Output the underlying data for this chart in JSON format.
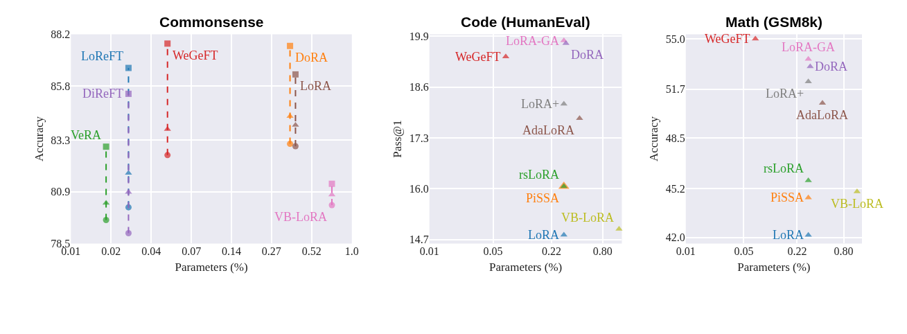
{
  "chart_data": [
    {
      "type": "line",
      "title": "Commonsense",
      "xlabel": "Parameters (%)",
      "ylabel": "Accuracy",
      "log": "x",
      "grid": true,
      "line_style": "dashed",
      "xlim": [
        0.01,
        1.0
      ],
      "xticks": [
        0.01,
        {
          "value": 0.0193,
          "label": "0.02"
        },
        {
          "value": 0.0373,
          "label": "0.04"
        },
        {
          "value": 0.072,
          "label": "0.07"
        },
        {
          "value": 0.139,
          "label": "0.14"
        },
        {
          "value": 0.268,
          "label": "0.27"
        },
        {
          "value": 0.518,
          "label": "0.52"
        },
        {
          "value": 1.0,
          "label": "1.0"
        }
      ],
      "ylim": [
        78.5,
        88.2
      ],
      "yticks": [
        78.5,
        80.9,
        83.3,
        85.8,
        88.2
      ],
      "series": [
        {
          "name": "VeRA",
          "color": "#2ca02c",
          "x": [
            0.0178,
            0.0178,
            0.0178
          ],
          "values": [
            79.59,
            80.38,
            82.99
          ],
          "marker": [
            "circle",
            "triangle",
            "square"
          ]
        },
        {
          "name": "LoReFT",
          "color": "#1f77b4",
          "x": [
            0.0257,
            0.0257,
            0.0257
          ],
          "values": [
            80.18,
            81.77,
            86.64
          ],
          "marker": [
            "circle",
            "triangle",
            "square"
          ]
        },
        {
          "name": "DiReFT",
          "color": "#9467bd",
          "x": [
            0.0257,
            0.0257,
            0.0257
          ],
          "values": [
            78.98,
            80.88,
            85.44
          ],
          "marker": [
            "circle",
            "triangle",
            "square"
          ]
        },
        {
          "name": "WeGeFT",
          "color": "#d62728",
          "x": [
            0.0487,
            0.0487,
            0.0487
          ],
          "values": [
            82.6,
            83.8,
            87.77
          ],
          "marker": [
            "circle",
            "triangle",
            "square"
          ]
        },
        {
          "name": "DoRA",
          "color": "#ff7f0e",
          "x": [
            0.363,
            0.363,
            0.363
          ],
          "values": [
            83.12,
            84.4,
            87.66
          ],
          "marker": [
            "circle",
            "triangle",
            "square"
          ]
        },
        {
          "name": "LoRA",
          "color": "#8c564b",
          "x": [
            0.397,
            0.397,
            0.397
          ],
          "values": [
            83.01,
            83.99,
            86.34
          ],
          "marker": [
            "circle",
            "triangle",
            "square"
          ]
        },
        {
          "name": "VB-LoRA",
          "color": "#e377c2",
          "x": [
            0.721,
            0.721,
            0.721
          ],
          "values": [
            80.28,
            80.76,
            81.27
          ],
          "marker": [
            "circle",
            "triangle",
            "square"
          ]
        }
      ]
    },
    {
      "type": "scatter",
      "title": "Code (HumanEval)",
      "xlabel": "Parameters (%)",
      "ylabel": "Pass@1",
      "log": "x",
      "grid": true,
      "xlim": [
        0.01,
        1.3
      ],
      "xticks": [
        0.01,
        0.05,
        0.22,
        {
          "value": 0.8,
          "label": "0.80"
        }
      ],
      "ylim": [
        14.6,
        19.95
      ],
      "yticks": [
        14.7,
        {
          "value": 16.0,
          "label": "16.0"
        },
        17.3,
        18.6,
        19.9
      ],
      "series": [
        {
          "name": "PiSSA",
          "color": "#ff7f0e",
          "x": [
            0.3
          ],
          "values": [
            16.06
          ],
          "marker": [
            "triangle"
          ]
        },
        {
          "name": "LoRA-GA",
          "color": "#e377c2",
          "x": [
            0.3
          ],
          "values": [
            19.79
          ],
          "marker": [
            "triangle"
          ]
        },
        {
          "name": "DoRA",
          "color": "#9467bd",
          "x": [
            0.316
          ],
          "values": [
            19.72
          ],
          "marker": [
            "triangle"
          ]
        },
        {
          "name": "WeGeFT",
          "color": "#d62728",
          "x": [
            0.069
          ],
          "values": [
            19.38
          ],
          "marker": [
            "triangle"
          ]
        },
        {
          "name": "LoRA+",
          "color": "#7f7f7f",
          "x": [
            0.3
          ],
          "values": [
            18.17
          ],
          "marker": [
            "triangle"
          ]
        },
        {
          "name": "AdaLoRA",
          "color": "#8c564b",
          "x": [
            0.446
          ],
          "values": [
            17.8
          ],
          "marker": [
            "triangle"
          ]
        },
        {
          "name": "rsLoRA",
          "color": "#2ca02c",
          "x": [
            0.3
          ],
          "values": [
            16.06
          ],
          "marker": [
            "triangle"
          ]
        },
        {
          "name": "VB-LoRA",
          "color": "#bcbd22",
          "x": [
            1.21
          ],
          "values": [
            14.97
          ],
          "marker": [
            "triangle"
          ]
        },
        {
          "name": "LoRA",
          "color": "#1f77b4",
          "x": [
            0.3
          ],
          "values": [
            14.82
          ],
          "marker": [
            "triangle"
          ]
        }
      ]
    },
    {
      "type": "scatter",
      "title": "Math (GSM8k)",
      "xlabel": "Parameters (%)",
      "ylabel": "Accuracy",
      "log": "x",
      "grid": true,
      "xlim": [
        0.01,
        1.33
      ],
      "xticks": [
        0.01,
        0.05,
        0.22,
        {
          "value": 0.8,
          "label": "0.80"
        }
      ],
      "ylim": [
        41.6,
        55.3
      ],
      "yticks": [
        {
          "value": 42.0,
          "label": "42.0"
        },
        45.2,
        48.5,
        51.7,
        {
          "value": 55.0,
          "label": "55.0"
        }
      ],
      "series": [
        {
          "name": "WeGeFT",
          "color": "#d62728",
          "x": [
            0.069
          ],
          "values": [
            55.0
          ],
          "marker": [
            "triangle"
          ]
        },
        {
          "name": "LoRA-GA",
          "color": "#e377c2",
          "x": [
            0.3
          ],
          "values": [
            53.68
          ],
          "marker": [
            "triangle"
          ]
        },
        {
          "name": "DoRA",
          "color": "#9467bd",
          "x": [
            0.316
          ],
          "values": [
            53.19
          ],
          "marker": [
            "triangle"
          ]
        },
        {
          "name": "LoRA+",
          "color": "#7f7f7f",
          "x": [
            0.3
          ],
          "values": [
            52.2
          ],
          "marker": [
            "triangle"
          ]
        },
        {
          "name": "AdaLoRA",
          "color": "#8c564b",
          "x": [
            0.444
          ],
          "values": [
            50.8
          ],
          "marker": [
            "triangle"
          ]
        },
        {
          "name": "rsLoRA",
          "color": "#2ca02c",
          "x": [
            0.3
          ],
          "values": [
            45.73
          ],
          "marker": [
            "triangle"
          ]
        },
        {
          "name": "PiSSA",
          "color": "#ff7f0e",
          "x": [
            0.3
          ],
          "values": [
            44.6
          ],
          "marker": [
            "triangle"
          ]
        },
        {
          "name": "VB-LoRA",
          "color": "#bcbd22",
          "x": [
            1.16
          ],
          "values": [
            45.0
          ],
          "marker": [
            "triangle"
          ]
        },
        {
          "name": "LoRA",
          "color": "#1f77b4",
          "x": [
            0.3
          ],
          "values": [
            42.15
          ],
          "marker": [
            "triangle"
          ]
        }
      ]
    }
  ]
}
